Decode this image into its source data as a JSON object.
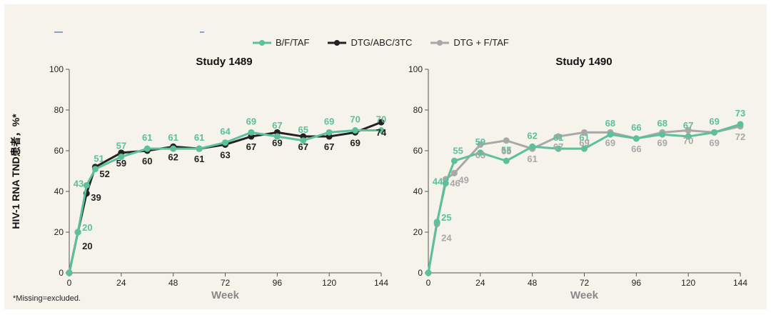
{
  "legend": {
    "items": [
      {
        "label": "B/F/TAF",
        "color": "#5cc09a"
      },
      {
        "label": "DTG/ABC/3TC",
        "color": "#222222"
      },
      {
        "label": "DTG + F/TAF",
        "color": "#a8a8a8"
      }
    ]
  },
  "ylabel": "HIV-1 RNA TND患者，%*",
  "footnote": "*Missing=excluded.",
  "chart_data": [
    {
      "type": "line",
      "title": "Study 1489",
      "xlabel": "Week",
      "ylabel": "HIV-1 RNA TND患者，%*",
      "xticks": [
        0,
        24,
        48,
        72,
        96,
        120,
        144
      ],
      "yticks": [
        0,
        20,
        40,
        60,
        80,
        100
      ],
      "xlim": [
        0,
        144
      ],
      "ylim": [
        0,
        100
      ],
      "series": [
        {
          "name": "B/F/TAF",
          "color": "#5cc09a",
          "x": [
            0,
            4,
            8,
            12,
            24,
            36,
            48,
            60,
            72,
            84,
            96,
            108,
            120,
            132,
            144
          ],
          "y": [
            0,
            20,
            43,
            51,
            57,
            61,
            61,
            61,
            64,
            69,
            67,
            65,
            69,
            70,
            70
          ],
          "labels": [
            "",
            "20",
            "43",
            "51",
            "57",
            "61",
            "61",
            "61",
            "64",
            "69",
            "67",
            "65",
            "69",
            "70",
            "70"
          ]
        },
        {
          "name": "DTG/ABC/3TC",
          "color": "#222222",
          "x": [
            0,
            4,
            8,
            12,
            24,
            36,
            48,
            60,
            72,
            84,
            96,
            108,
            120,
            132,
            144
          ],
          "y": [
            0,
            20,
            39,
            52,
            59,
            60,
            62,
            61,
            63,
            67,
            69,
            67,
            67,
            69,
            74
          ],
          "labels": [
            "",
            "20",
            "39",
            "52",
            "59",
            "60",
            "62",
            "61",
            "63",
            "67",
            "69",
            "67",
            "67",
            "69",
            "74"
          ]
        }
      ]
    },
    {
      "type": "line",
      "title": "Study 1490",
      "xlabel": "Week",
      "ylabel": "",
      "xticks": [
        0,
        24,
        48,
        72,
        96,
        120,
        144
      ],
      "yticks": [
        0,
        20,
        40,
        60,
        80,
        100
      ],
      "xlim": [
        0,
        144
      ],
      "ylim": [
        0,
        100
      ],
      "series": [
        {
          "name": "B/F/TAF",
          "color": "#5cc09a",
          "x": [
            0,
            4,
            8,
            12,
            24,
            36,
            48,
            60,
            72,
            84,
            96,
            108,
            120,
            132,
            144
          ],
          "y": [
            0,
            25,
            44,
            55,
            59,
            55,
            62,
            61,
            61,
            68,
            66,
            68,
            67,
            69,
            73
          ],
          "labels": [
            "",
            "25",
            "44",
            "55",
            "59",
            "55",
            "62",
            "61",
            "61",
            "68",
            "66",
            "68",
            "67",
            "69",
            "73"
          ]
        },
        {
          "name": "DTG + F/TAF",
          "color": "#a8a8a8",
          "x": [
            0,
            4,
            8,
            12,
            24,
            36,
            48,
            60,
            72,
            84,
            96,
            108,
            120,
            132,
            144
          ],
          "y": [
            0,
            24,
            46,
            49,
            63,
            65,
            61,
            67,
            69,
            69,
            66,
            69,
            70,
            69,
            72
          ],
          "labels": [
            "",
            "24",
            "46",
            "49",
            "63",
            "65",
            "61",
            "67",
            "69",
            "69",
            "66",
            "69",
            "70",
            "69",
            "72"
          ]
        }
      ]
    }
  ]
}
